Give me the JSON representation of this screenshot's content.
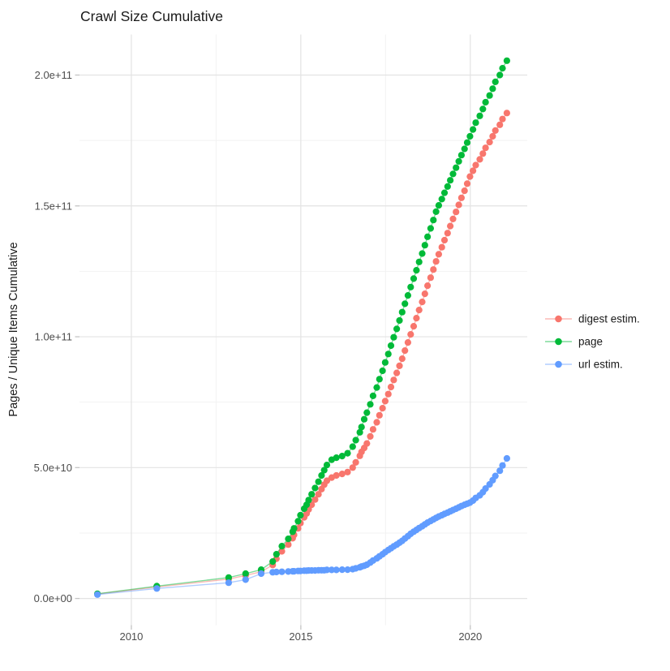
{
  "title": "Crawl Size Cumulative",
  "chart_data": {
    "type": "scatter",
    "title": "Crawl Size Cumulative",
    "xlabel": "",
    "ylabel": "Pages / Unique Items Cumulative",
    "y_unit": "pages, values stored in billions (1e9)",
    "x_unit": "decimal year",
    "grid": true,
    "legend_position": "right",
    "xlim": [
      2008.47,
      2021.68
    ],
    "ylim_e9": [
      -10.2,
      215.5
    ],
    "x_ticks": [
      {
        "value": 2010,
        "label": "2010"
      },
      {
        "value": 2015,
        "label": "2015"
      },
      {
        "value": 2020,
        "label": "2020"
      }
    ],
    "x_minor": [
      2012.5,
      2017.5
    ],
    "y_ticks": [
      {
        "value_e9": 0,
        "label": "0.0e+00"
      },
      {
        "value_e9": 50,
        "label": "5.0e+10"
      },
      {
        "value_e9": 100,
        "label": "1.0e+11"
      },
      {
        "value_e9": 150,
        "label": "1.5e+11"
      },
      {
        "value_e9": 200,
        "label": "2.0e+11"
      }
    ],
    "y_minor_e9": [
      25,
      75,
      125,
      175
    ],
    "x": [
      2009.0,
      2010.75,
      2012.87,
      2013.37,
      2013.83,
      2014.17,
      2014.28,
      2014.44,
      2014.63,
      2014.76,
      2014.8,
      2014.92,
      2014.99,
      2015.1,
      2015.17,
      2015.23,
      2015.32,
      2015.42,
      2015.52,
      2015.61,
      2015.69,
      2015.77,
      2015.91,
      2016.05,
      2016.22,
      2016.38,
      2016.53,
      2016.62,
      2016.74,
      2016.79,
      2016.87,
      2016.95,
      2017.05,
      2017.13,
      2017.24,
      2017.32,
      2017.41,
      2017.49,
      2017.58,
      2017.66,
      2017.74,
      2017.83,
      2017.91,
      2017.99,
      2018.07,
      2018.16,
      2018.24,
      2018.33,
      2018.41,
      2018.49,
      2018.58,
      2018.66,
      2018.74,
      2018.83,
      2018.91,
      2018.99,
      2019.07,
      2019.16,
      2019.24,
      2019.33,
      2019.41,
      2019.49,
      2019.58,
      2019.66,
      2019.74,
      2019.83,
      2019.91,
      2019.99,
      2020.08,
      2020.16,
      2020.28,
      2020.37,
      2020.45,
      2020.57,
      2020.66,
      2020.74,
      2020.87,
      2020.95,
      2021.08
    ],
    "series": [
      {
        "name": "digest estim.",
        "color": "#F8766D",
        "values_e9": [
          1.7,
          4.4,
          7.4,
          8.8,
          10.2,
          12.8,
          15.2,
          18.0,
          20.6,
          23.0,
          24.3,
          26.8,
          28.8,
          31.0,
          32.5,
          34.0,
          35.8,
          37.8,
          39.8,
          41.8,
          43.5,
          45.0,
          46.2,
          47.0,
          47.6,
          48.3,
          50.0,
          52.0,
          54.5,
          56.0,
          57.5,
          59.2,
          61.9,
          64.6,
          67.3,
          70.0,
          72.7,
          75.4,
          78.1,
          80.8,
          83.5,
          86.2,
          88.9,
          91.6,
          94.7,
          97.8,
          100.9,
          104.0,
          107.1,
          110.2,
          113.3,
          116.4,
          119.5,
          122.6,
          125.7,
          128.8,
          131.5,
          134.2,
          136.9,
          139.6,
          142.3,
          145.0,
          147.7,
          150.4,
          153.1,
          155.8,
          158.5,
          161.2,
          163.4,
          165.6,
          167.8,
          170.0,
          172.2,
          174.4,
          176.6,
          178.8,
          181.0,
          183.2,
          185.5
        ]
      },
      {
        "name": "page",
        "color": "#00BA38",
        "values_e9": [
          1.8,
          4.7,
          8.0,
          9.5,
          11.0,
          14.1,
          16.9,
          20.0,
          22.8,
          25.5,
          26.8,
          29.5,
          31.8,
          34.3,
          35.8,
          37.6,
          39.8,
          42.2,
          44.6,
          47.0,
          49.0,
          51.0,
          53.0,
          53.8,
          54.4,
          55.5,
          58.0,
          60.5,
          63.5,
          65.5,
          68.5,
          71.0,
          74.2,
          77.4,
          80.6,
          83.8,
          87.0,
          90.2,
          93.4,
          96.6,
          99.8,
          103.0,
          106.2,
          109.4,
          112.6,
          115.8,
          119.0,
          122.2,
          125.4,
          128.6,
          131.8,
          135.0,
          138.2,
          141.4,
          144.6,
          147.8,
          150.2,
          152.6,
          155.0,
          157.4,
          159.8,
          162.2,
          164.6,
          167.0,
          169.4,
          171.8,
          174.2,
          176.6,
          179.2,
          181.8,
          184.4,
          187.0,
          189.6,
          192.2,
          194.8,
          197.4,
          200.0,
          202.6,
          205.5
        ]
      },
      {
        "name": "url estim.",
        "color": "#619CFF",
        "values_e9": [
          1.5,
          3.8,
          6.0,
          7.2,
          9.5,
          10.0,
          10.1,
          10.2,
          10.3,
          10.4,
          10.4,
          10.5,
          10.5,
          10.6,
          10.6,
          10.7,
          10.7,
          10.7,
          10.8,
          10.8,
          10.8,
          10.9,
          10.9,
          10.9,
          11.0,
          11.0,
          11.2,
          11.5,
          11.9,
          12.2,
          12.5,
          12.9,
          13.7,
          14.5,
          15.3,
          16.1,
          16.9,
          17.7,
          18.5,
          19.2,
          19.9,
          20.6,
          21.3,
          22.0,
          22.9,
          23.8,
          24.7,
          25.5,
          26.2,
          26.9,
          27.6,
          28.3,
          29.0,
          29.6,
          30.2,
          30.8,
          31.3,
          31.8,
          32.3,
          32.8,
          33.3,
          33.8,
          34.3,
          34.8,
          35.3,
          35.8,
          36.2,
          36.6,
          37.4,
          38.4,
          39.4,
          40.6,
          42.0,
          43.6,
          45.2,
          46.8,
          48.8,
          50.8,
          53.5
        ]
      }
    ],
    "style": {
      "major_grid_color": "#e3e3e3",
      "minor_grid_color": "#f2f2f2",
      "tick_mark_color": "#c4c4c4",
      "tick_label_color": "#4d4d4d",
      "title_color": "#1a1a1a",
      "point_radius_px": 4.1,
      "line_opacity": 0.5
    }
  }
}
